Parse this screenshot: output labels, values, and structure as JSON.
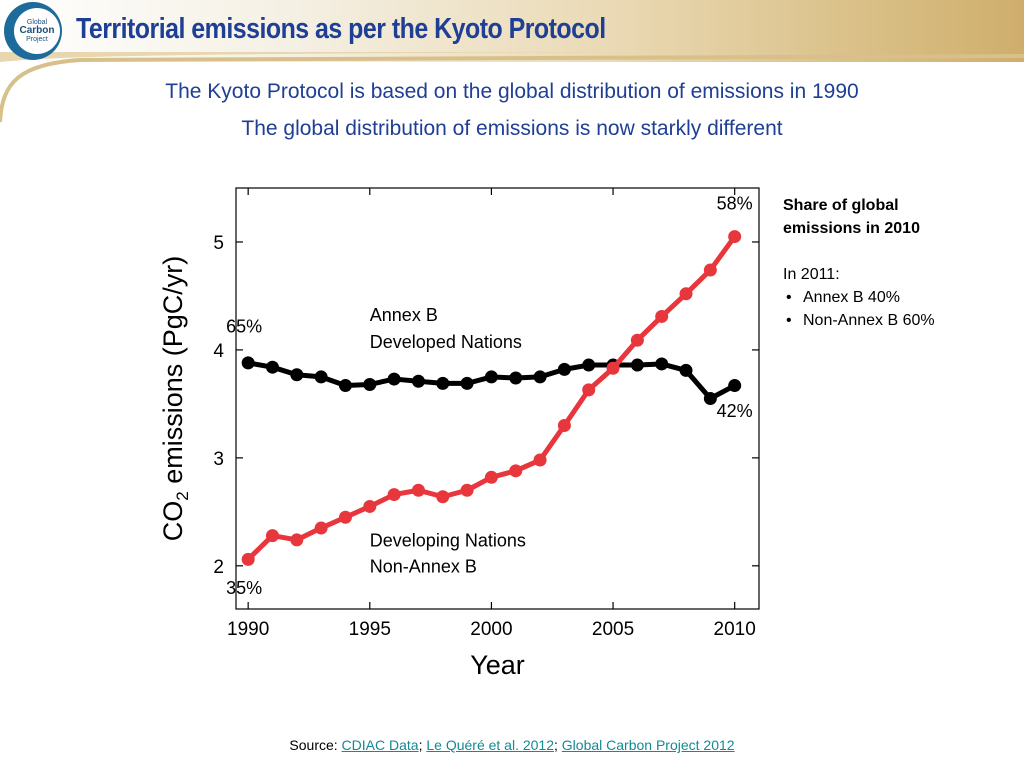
{
  "slide": {
    "title": "Territorial emissions as per the Kyoto Protocol",
    "subtitle_1": "The Kyoto Protocol is based on the global distribution of emissions in 1990",
    "subtitle_2": "The global distribution of emissions is now starkly different",
    "logo": {
      "line1": "Global",
      "line2": "Carbon",
      "line3": "Project"
    },
    "colors": {
      "title": "#1f3f95",
      "link": "#138a94",
      "logo": "#1d6b9a"
    }
  },
  "sidebar": {
    "heading_line1": "Share of global",
    "heading_line2": "emissions in 2010",
    "in_year": "In 2011:",
    "items": [
      "Annex B 40%",
      "Non-Annex B 60%"
    ]
  },
  "source": {
    "prefix": "Source: ",
    "links": [
      "CDIAC Data",
      "Le Quéré et al. 2012",
      "Global Carbon Project 2012"
    ],
    "sep": "; "
  },
  "chart_data": {
    "type": "line",
    "xlabel": "Year",
    "ylabel_pre": "CO",
    "ylabel_sub": "2",
    "ylabel_post": " emissions (PgC/yr)",
    "xlim": [
      1989.5,
      2011
    ],
    "ylim": [
      1.6,
      5.5
    ],
    "xticks": [
      1990,
      1995,
      2000,
      2005,
      2010
    ],
    "yticks": [
      2,
      3,
      4,
      5
    ],
    "grid": false,
    "x": [
      1990,
      1991,
      1992,
      1993,
      1994,
      1995,
      1996,
      1997,
      1998,
      1999,
      2000,
      2001,
      2002,
      2003,
      2004,
      2005,
      2006,
      2007,
      2008,
      2009,
      2010
    ],
    "series": [
      {
        "color": "#000000",
        "values": [
          3.88,
          3.84,
          3.77,
          3.75,
          3.67,
          3.68,
          3.73,
          3.71,
          3.69,
          3.69,
          3.75,
          3.74,
          3.75,
          3.82,
          3.86,
          3.86,
          3.86,
          3.87,
          3.81,
          3.55,
          3.67
        ]
      },
      {
        "color": "#e8363d",
        "values": [
          2.06,
          2.28,
          2.24,
          2.35,
          2.45,
          2.55,
          2.66,
          2.7,
          2.64,
          2.7,
          2.82,
          2.88,
          2.98,
          3.3,
          3.63,
          3.83,
          4.09,
          4.31,
          4.52,
          4.74,
          5.05
        ]
      }
    ],
    "annotations": [
      {
        "text": "65%",
        "x": 1990,
        "y": 4.16,
        "anchor": "start",
        "dx": -22
      },
      {
        "text": "35%",
        "x": 1990,
        "y": 1.74,
        "anchor": "start",
        "dx": -22
      },
      {
        "text": "58%",
        "x": 2010,
        "y": 5.3,
        "anchor": "middle"
      },
      {
        "text": "42%",
        "x": 2010,
        "y": 3.38,
        "anchor": "middle"
      },
      {
        "text": "Annex B",
        "x": 1995,
        "y": 4.27,
        "anchor": "start"
      },
      {
        "text": "Developed Nations",
        "x": 1995,
        "y": 4.02,
        "anchor": "start"
      },
      {
        "text": "Developing Nations",
        "x": 1995,
        "y": 2.18,
        "anchor": "start"
      },
      {
        "text": "Non-Annex B",
        "x": 1995,
        "y": 1.94,
        "anchor": "start"
      }
    ]
  }
}
